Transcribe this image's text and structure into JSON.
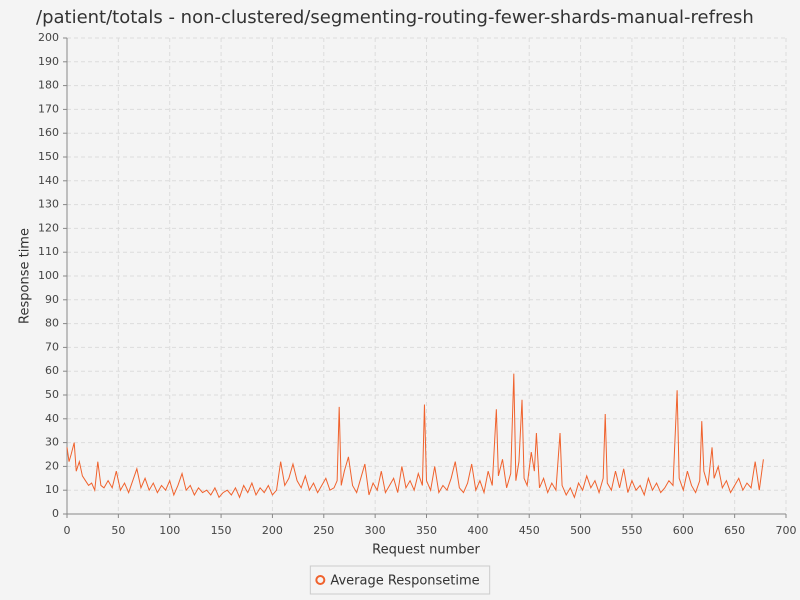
{
  "chart_data": {
    "type": "line",
    "title": "/patient/totals - non-clustered/segmenting-routing-fewer-shards-manual-refresh",
    "x_label": "Request number",
    "y_label": "Response time",
    "x": [
      0,
      2,
      4,
      7,
      9,
      12,
      15,
      18,
      21,
      24,
      27,
      30,
      33,
      36,
      40,
      44,
      48,
      52,
      56,
      60,
      64,
      68,
      72,
      76,
      80,
      84,
      88,
      92,
      96,
      100,
      104,
      108,
      112,
      116,
      120,
      124,
      128,
      132,
      136,
      140,
      144,
      148,
      152,
      156,
      160,
      164,
      168,
      172,
      176,
      180,
      184,
      188,
      192,
      196,
      200,
      204,
      208,
      212,
      216,
      220,
      224,
      228,
      232,
      236,
      240,
      244,
      248,
      252,
      256,
      260,
      263,
      265,
      267,
      270,
      274,
      278,
      282,
      286,
      290,
      294,
      298,
      302,
      306,
      310,
      314,
      318,
      322,
      326,
      330,
      334,
      338,
      342,
      346,
      348,
      350,
      354,
      358,
      362,
      366,
      370,
      374,
      378,
      382,
      386,
      390,
      394,
      398,
      402,
      406,
      410,
      414,
      418,
      420,
      424,
      428,
      432,
      435,
      437,
      440,
      443,
      445,
      448,
      452,
      455,
      457,
      460,
      464,
      468,
      472,
      476,
      480,
      482,
      486,
      490,
      494,
      498,
      502,
      506,
      510,
      514,
      518,
      522,
      524,
      526,
      530,
      534,
      538,
      542,
      546,
      550,
      554,
      558,
      562,
      566,
      570,
      574,
      578,
      582,
      586,
      590,
      594,
      596,
      600,
      604,
      608,
      612,
      616,
      618,
      620,
      624,
      628,
      630,
      634,
      638,
      642,
      646,
      650,
      654,
      658,
      662,
      666,
      670,
      674,
      678
    ],
    "series": [
      {
        "name": "Average Responsetime",
        "color": "#f0622d",
        "values": [
          28,
          22,
          25,
          30,
          18,
          22,
          16,
          14,
          12,
          13,
          10,
          22,
          12,
          11,
          14,
          11,
          18,
          10,
          13,
          9,
          14,
          19,
          11,
          15,
          10,
          13,
          9,
          12,
          10,
          14,
          8,
          12,
          17,
          10,
          12,
          8,
          11,
          9,
          10,
          8,
          11,
          7,
          9,
          10,
          8,
          11,
          7,
          12,
          9,
          13,
          8,
          11,
          9,
          12,
          8,
          10,
          22,
          12,
          15,
          21,
          14,
          11,
          16,
          10,
          13,
          9,
          12,
          15,
          10,
          11,
          14,
          45,
          12,
          18,
          24,
          12,
          9,
          15,
          21,
          8,
          13,
          10,
          18,
          9,
          12,
          15,
          9,
          20,
          11,
          14,
          10,
          17,
          12,
          46,
          14,
          10,
          20,
          9,
          12,
          10,
          15,
          22,
          11,
          9,
          13,
          21,
          10,
          14,
          9,
          18,
          12,
          44,
          16,
          23,
          11,
          17,
          59,
          14,
          22,
          48,
          15,
          12,
          26,
          18,
          34,
          11,
          15,
          9,
          13,
          10,
          34,
          12,
          8,
          11,
          7,
          13,
          10,
          16,
          11,
          14,
          9,
          15,
          42,
          13,
          10,
          18,
          11,
          19,
          9,
          14,
          10,
          12,
          8,
          15,
          10,
          13,
          9,
          11,
          14,
          12,
          52,
          15,
          10,
          18,
          12,
          9,
          14,
          39,
          18,
          12,
          28,
          15,
          20,
          11,
          14,
          9,
          12,
          15,
          10,
          13,
          11,
          22,
          10,
          23
        ]
      }
    ],
    "xlim": [
      0,
      700
    ],
    "ylim": [
      0,
      200
    ],
    "xticks": [
      0,
      50,
      100,
      150,
      200,
      250,
      300,
      350,
      400,
      450,
      500,
      550,
      600,
      650,
      700
    ],
    "yticks": [
      0,
      10,
      20,
      30,
      40,
      50,
      60,
      70,
      80,
      90,
      100,
      110,
      120,
      130,
      140,
      150,
      160,
      170,
      180,
      190,
      200
    ],
    "grid": true
  }
}
